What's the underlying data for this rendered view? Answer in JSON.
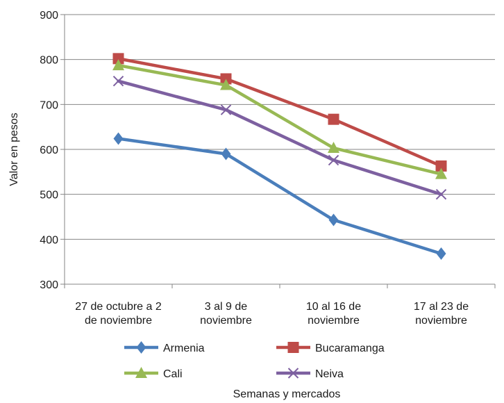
{
  "chart_data": {
    "type": "line",
    "title": "",
    "xlabel": "Semanas y mercados",
    "ylabel": "Valor en pesos",
    "ylim": [
      300,
      900
    ],
    "yticks": [
      "300",
      "400",
      "500",
      "600",
      "700",
      "800",
      "900"
    ],
    "categories": [
      [
        "27 de octubre a 2",
        "de noviembre"
      ],
      [
        "3 al 9 de",
        "noviembre"
      ],
      [
        "10 al 16 de",
        "noviembre"
      ],
      [
        "17 al 23 de",
        "noviembre"
      ]
    ],
    "grid": true,
    "legend_position": "bottom",
    "series": [
      {
        "name": "Armenia",
        "values": [
          624,
          590,
          443,
          368
        ],
        "color": "#4a7ebb",
        "marker": "diamond"
      },
      {
        "name": "Bucaramanga",
        "values": [
          802,
          757,
          667,
          563
        ],
        "color": "#be4b48",
        "marker": "square"
      },
      {
        "name": "Cali",
        "values": [
          787,
          743,
          603,
          545
        ],
        "color": "#98b954",
        "marker": "triangle"
      },
      {
        "name": "Neiva",
        "values": [
          752,
          688,
          576,
          500
        ],
        "color": "#7d60a0",
        "marker": "x"
      }
    ]
  }
}
